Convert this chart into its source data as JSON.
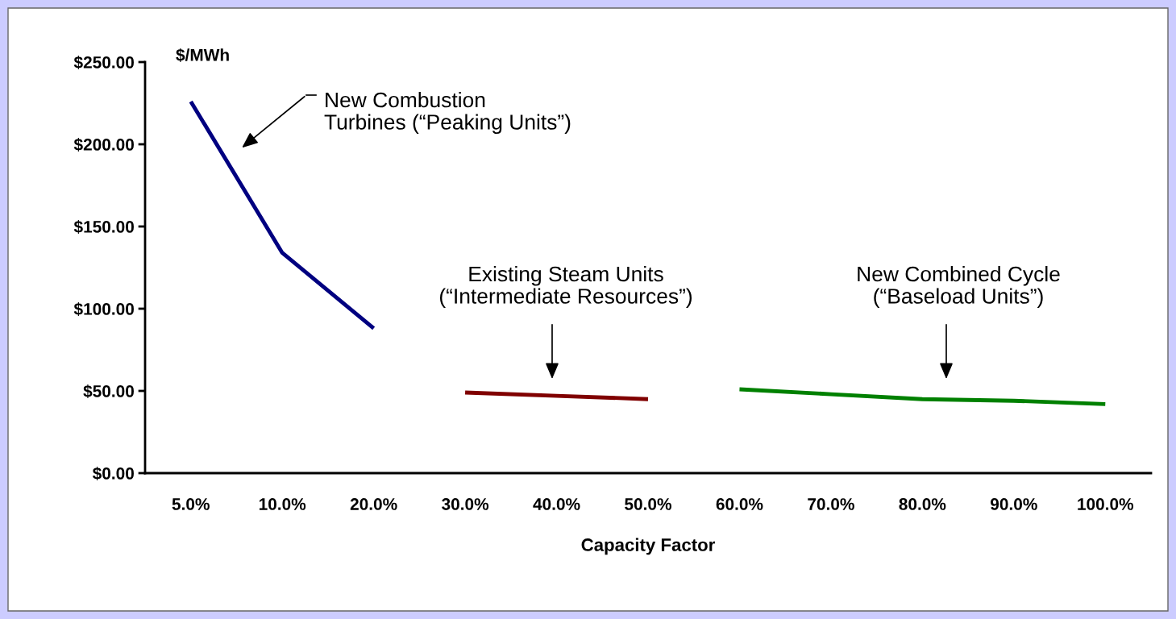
{
  "chart_data": {
    "type": "line",
    "xlabel": "Capacity Factor",
    "ylabel": "$/MWh",
    "categories": [
      "5.0%",
      "10.0%",
      "20.0%",
      "30.0%",
      "40.0%",
      "50.0%",
      "60.0%",
      "70.0%",
      "80.0%",
      "90.0%",
      "100.0%"
    ],
    "series": [
      {
        "color": "#000080",
        "values": [
          226,
          134,
          88,
          null,
          null,
          null,
          null,
          null,
          null,
          null,
          null
        ]
      },
      {
        "color": "#800000",
        "values": [
          null,
          null,
          null,
          49,
          47,
          45,
          null,
          null,
          null,
          null,
          null
        ]
      },
      {
        "color": "#008000",
        "values": [
          null,
          null,
          null,
          null,
          null,
          null,
          51,
          48,
          45,
          44,
          42
        ]
      }
    ],
    "ylim": [
      0,
      250
    ],
    "yticks": [
      {
        "value": 0,
        "label": "$0.00"
      },
      {
        "value": 50,
        "label": "$50.00"
      },
      {
        "value": 100,
        "label": "$100.00"
      },
      {
        "value": 150,
        "label": "$150.00"
      },
      {
        "value": 200,
        "label": "$200.00"
      },
      {
        "value": 250,
        "label": "$250.00"
      }
    ],
    "grid": false,
    "legend": false,
    "marker": "none",
    "line_style": "solid",
    "annotations": [
      "New Combustion\nTurbines (“Peaking Units”)",
      "Existing Steam Units\n(“Intermediate Resources”)",
      "New Combined Cycle\n(“Baseload Units”)"
    ]
  }
}
